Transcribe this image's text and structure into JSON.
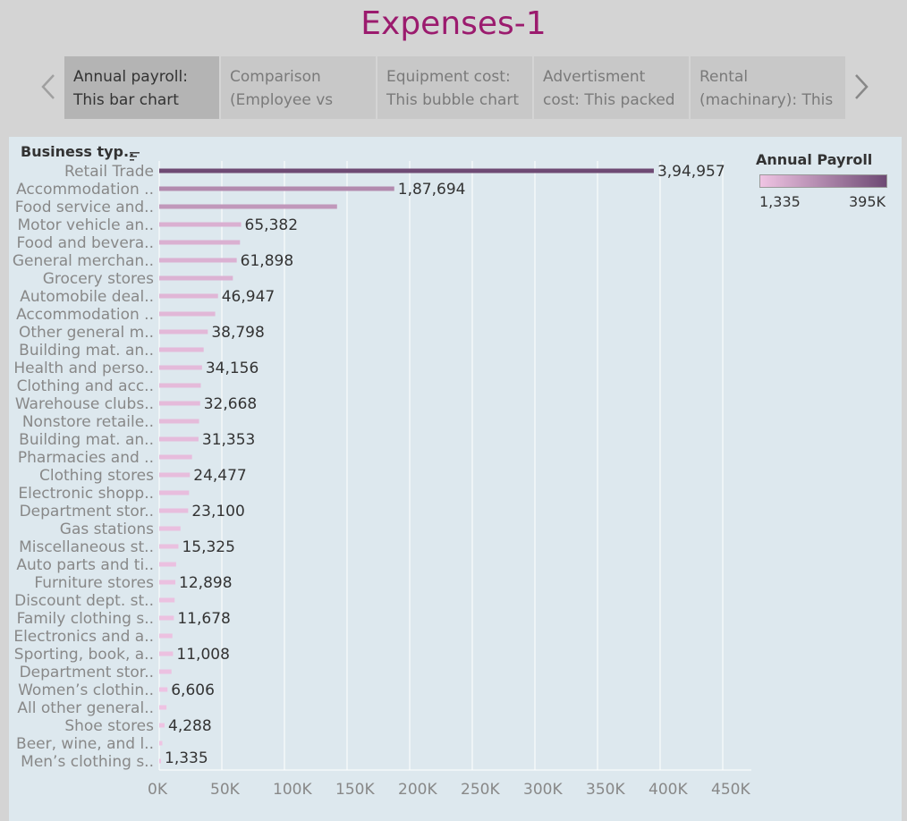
{
  "page": {
    "title": "Expenses-1"
  },
  "story": {
    "points": [
      {
        "line1": "Annual payroll:",
        "line2": "This bar chart",
        "active": true
      },
      {
        "line1": "Comparison",
        "line2": "(Employee vs",
        "active": false
      },
      {
        "line1": "Equipment cost:",
        "line2": "This bubble chart",
        "active": false
      },
      {
        "line1": "Advertisment",
        "line2": "cost: This packed",
        "active": false
      },
      {
        "line1": "Rental",
        "line2": "(machinary): This",
        "active": false
      }
    ],
    "prev_icon": "chevron-left-icon",
    "next_icon": "chevron-right-icon"
  },
  "legend": {
    "title": "Annual Payroll",
    "min_label": "1,335",
    "max_label": "395K",
    "color_low": "#efc4e3",
    "color_high": "#6e4a74"
  },
  "chart_data": {
    "type": "bar",
    "orientation": "horizontal",
    "row_header": "Business typ..",
    "categories": [
      "Retail Trade",
      "Accommodation ..",
      "Food service and..",
      "Motor vehicle an..",
      "Food and bevera..",
      "General merchan..",
      "Grocery stores",
      "Automobile deal..",
      "Accommodation ..",
      "Other general m..",
      "Building mat. an..",
      "Health and perso..",
      "Clothing and acc..",
      "Warehouse clubs..",
      "Nonstore retaile..",
      "Building mat. an..",
      "Pharmacies and ..",
      "Clothing stores",
      "Electronic shopp..",
      "Department stor..",
      "Gas stations",
      "Miscellaneous st..",
      "Auto parts and ti..",
      "Furniture stores",
      "Discount dept. st..",
      "Family clothing s..",
      "Electronics and a..",
      "Sporting, book, a..",
      "Department stor..",
      "Women’s clothin..",
      "All other general..",
      "Shoe stores",
      "Beer, wine, and l..",
      "Men’s clothing s.."
    ],
    "values": [
      394957,
      187694,
      142000,
      65382,
      64500,
      61898,
      58800,
      46947,
      44700,
      38798,
      35500,
      34156,
      33200,
      32668,
      31800,
      31353,
      26200,
      24477,
      23800,
      23100,
      17000,
      15325,
      13500,
      12898,
      12300,
      11678,
      10500,
      11008,
      9800,
      6606,
      5800,
      4288,
      2500,
      1335
    ],
    "labels": [
      "3,94,957",
      "1,87,694",
      "",
      "65,382",
      "",
      "61,898",
      "",
      "46,947",
      "",
      "38,798",
      "",
      "34,156",
      "",
      "32,668",
      "",
      "31,353",
      "",
      "24,477",
      "",
      "23,100",
      "",
      "15,325",
      "",
      "12,898",
      "",
      "11,678",
      "",
      "11,008",
      "",
      "6,606",
      "",
      "4,288",
      "",
      "1,335"
    ],
    "xlim": [
      0,
      480000
    ],
    "xticks": [
      0,
      50000,
      100000,
      150000,
      200000,
      250000,
      300000,
      350000,
      400000,
      450000
    ],
    "xtick_labels": [
      "0K",
      "50K",
      "100K",
      "150K",
      "200K",
      "250K",
      "300K",
      "350K",
      "400K",
      "450K"
    ],
    "grid": true
  }
}
